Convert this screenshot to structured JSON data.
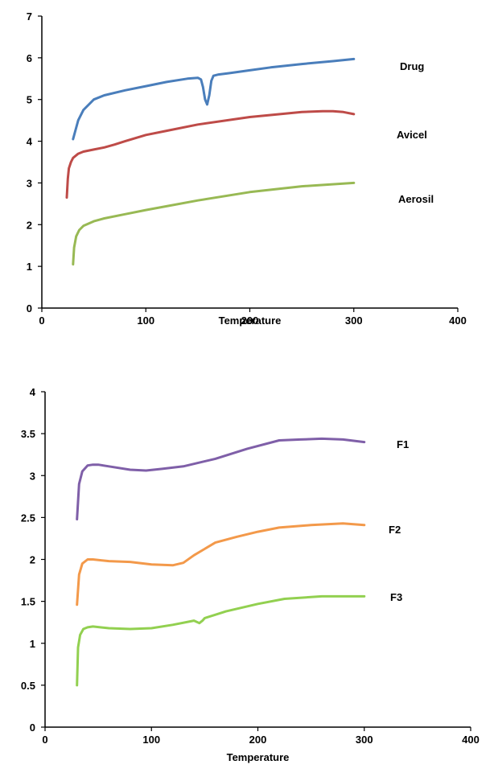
{
  "chart_data": [
    {
      "type": "line",
      "xlabel": "Temperature",
      "ylabel": "",
      "xlim": [
        0,
        400
      ],
      "ylim": [
        0,
        7
      ],
      "x_ticks": [
        0,
        100,
        200,
        300,
        400
      ],
      "y_ticks": [
        0,
        1,
        2,
        3,
        4,
        5,
        6,
        7
      ],
      "grid": false,
      "series": [
        {
          "name": "Drug",
          "color": "#4a7ebb",
          "x": [
            30,
            35,
            40,
            50,
            60,
            80,
            100,
            120,
            140,
            150,
            153,
            155,
            157,
            159,
            161,
            163,
            165,
            170,
            180,
            200,
            220,
            250,
            280,
            300
          ],
          "y": [
            4.05,
            4.5,
            4.75,
            5.0,
            5.1,
            5.22,
            5.32,
            5.42,
            5.5,
            5.52,
            5.48,
            5.3,
            5.0,
            4.88,
            5.1,
            5.45,
            5.57,
            5.6,
            5.63,
            5.7,
            5.77,
            5.85,
            5.92,
            5.97
          ]
        },
        {
          "name": "Avicel",
          "color": "#be4b48",
          "x": [
            24,
            25,
            26,
            28,
            30,
            35,
            40,
            50,
            60,
            70,
            80,
            100,
            120,
            150,
            200,
            250,
            270,
            280,
            290,
            300
          ],
          "y": [
            2.65,
            3.1,
            3.35,
            3.5,
            3.6,
            3.7,
            3.75,
            3.8,
            3.85,
            3.92,
            4.0,
            4.15,
            4.25,
            4.4,
            4.58,
            4.7,
            4.72,
            4.72,
            4.7,
            4.65
          ]
        },
        {
          "name": "Aerosil",
          "color": "#98b954",
          "x": [
            30,
            31,
            33,
            36,
            40,
            50,
            60,
            80,
            100,
            150,
            200,
            250,
            300
          ],
          "y": [
            1.05,
            1.45,
            1.72,
            1.87,
            1.97,
            2.08,
            2.15,
            2.25,
            2.35,
            2.58,
            2.78,
            2.92,
            3.0
          ]
        }
      ]
    },
    {
      "type": "line",
      "xlabel": "Temperature",
      "ylabel": "",
      "xlim": [
        0,
        400
      ],
      "ylim": [
        0,
        4
      ],
      "x_ticks": [
        0,
        100,
        200,
        300,
        400
      ],
      "y_ticks": [
        0,
        0.5,
        1,
        1.5,
        2,
        2.5,
        3,
        3.5,
        4
      ],
      "grid": false,
      "series": [
        {
          "name": "F1",
          "color": "#7f5fa8",
          "x": [
            30,
            32,
            35,
            40,
            45,
            50,
            60,
            80,
            95,
            110,
            130,
            160,
            190,
            220,
            240,
            260,
            280,
            300
          ],
          "y": [
            2.48,
            2.9,
            3.05,
            3.12,
            3.13,
            3.13,
            3.11,
            3.07,
            3.06,
            3.08,
            3.11,
            3.2,
            3.32,
            3.42,
            3.43,
            3.44,
            3.43,
            3.4
          ]
        },
        {
          "name": "F2",
          "color": "#f3994a",
          "x": [
            30,
            32,
            35,
            40,
            45,
            60,
            80,
            100,
            120,
            130,
            140,
            160,
            180,
            200,
            220,
            250,
            280,
            300
          ],
          "y": [
            1.46,
            1.82,
            1.95,
            2.0,
            2.0,
            1.98,
            1.97,
            1.94,
            1.93,
            1.96,
            2.05,
            2.2,
            2.27,
            2.33,
            2.38,
            2.41,
            2.43,
            2.41
          ]
        },
        {
          "name": "F3",
          "color": "#92d050",
          "x": [
            30,
            31,
            33,
            36,
            40,
            45,
            60,
            80,
            100,
            120,
            140,
            145,
            148,
            150,
            170,
            200,
            225,
            260,
            300
          ],
          "y": [
            0.5,
            0.95,
            1.1,
            1.17,
            1.19,
            1.2,
            1.18,
            1.17,
            1.18,
            1.22,
            1.27,
            1.24,
            1.27,
            1.3,
            1.38,
            1.47,
            1.53,
            1.56,
            1.56
          ]
        }
      ]
    }
  ]
}
